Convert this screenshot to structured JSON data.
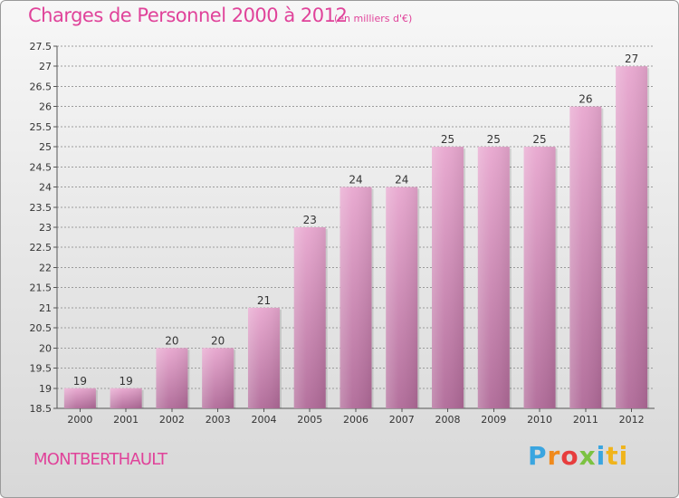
{
  "header": {
    "title": "Charges de Personnel 2000 à 2012",
    "subtitle": "(en milliers d'€)"
  },
  "footer": {
    "commune": "MONTBERTHAULT",
    "logo_parts": [
      "P",
      "r",
      "o",
      "x",
      "i",
      "ti"
    ]
  },
  "colors": {
    "accent": "#e0439a",
    "bar_top": "#e8a7cf",
    "bar_bottom": "#b06a98",
    "grid": "#9c9c9c"
  },
  "chart_data": {
    "type": "bar",
    "title": "Charges de Personnel 2000 à 2012",
    "subtitle": "(en milliers d'€)",
    "xlabel": "",
    "ylabel": "",
    "categories": [
      "2000",
      "2001",
      "2002",
      "2003",
      "2004",
      "2005",
      "2006",
      "2007",
      "2008",
      "2009",
      "2010",
      "2011",
      "2012"
    ],
    "values": [
      19,
      19,
      20,
      20,
      21,
      23,
      24,
      24,
      25,
      25,
      25,
      26,
      27
    ],
    "data_labels": [
      "19",
      "19",
      "20",
      "20",
      "21",
      "23",
      "24",
      "24",
      "25",
      "25",
      "25",
      "26",
      "27"
    ],
    "ylim": [
      18.5,
      27.5
    ],
    "ytick_step": 0.5,
    "ytick_labels": [
      "18.5",
      "19",
      "19.5",
      "20",
      "20.5",
      "21",
      "21.5",
      "22",
      "22.5",
      "23",
      "23.5",
      "24",
      "24.5",
      "25",
      "25.5",
      "26",
      "26.5",
      "27",
      "27.5"
    ],
    "grid": true,
    "legend": "none"
  }
}
